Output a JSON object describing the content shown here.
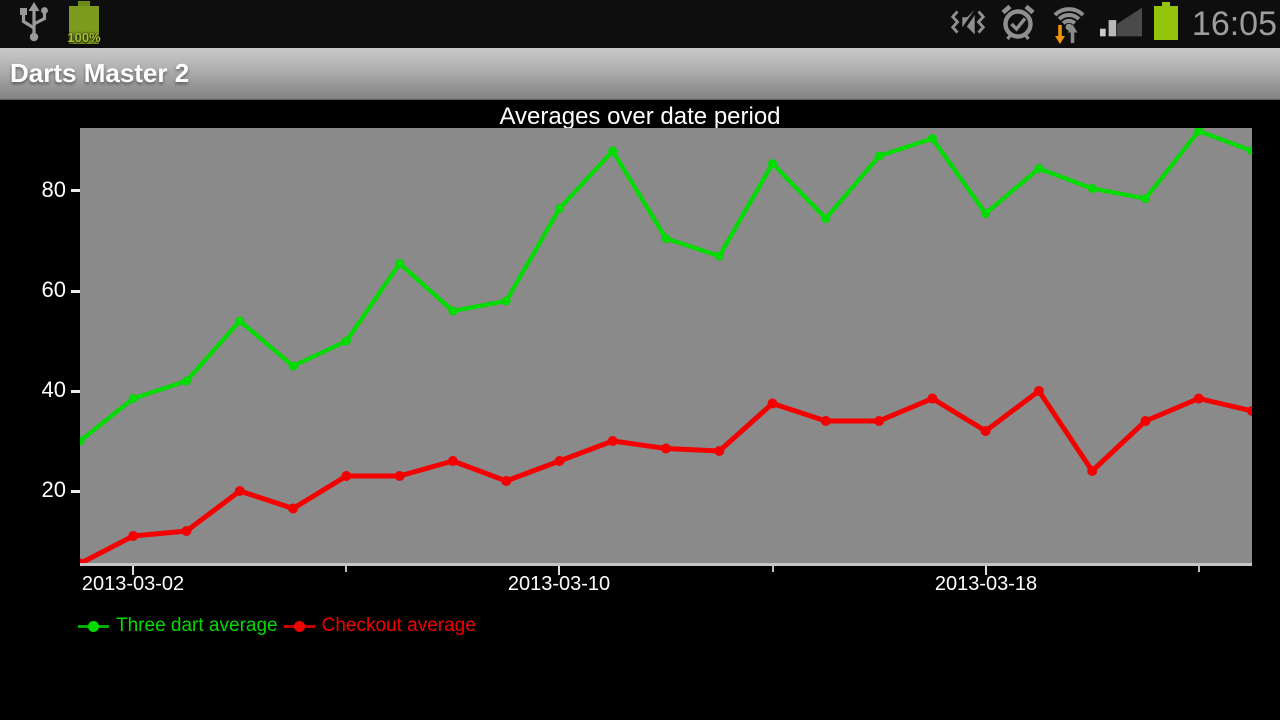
{
  "status_bar": {
    "time": "16:05",
    "battery_left_label": "100%",
    "icons_left": [
      "usb-icon",
      "battery-100-icon"
    ],
    "icons_right": [
      "vibrate-mute-icon",
      "alarm-icon",
      "wifi-traffic-icon",
      "signal-strength-icon",
      "battery-full-icon"
    ],
    "colors": {
      "battery_left": "#7d9b1e",
      "battery_left_nub": "#6d8a16",
      "battery_left_text": "#a6c32f",
      "battery_right": "#94c30e",
      "icon_gray": "#8f8f8f",
      "time_text": "#9d9d9d",
      "wifi_down_arrow": "#f09409",
      "wifi_up_arrow": "#8a8a8a"
    }
  },
  "title_bar": {
    "title": "Darts Master 2"
  },
  "chart_data": {
    "type": "line",
    "title": "Averages over date period",
    "xlabel": "",
    "ylabel": "",
    "x": [
      "2013-03-01",
      "2013-03-02",
      "2013-03-03",
      "2013-03-04",
      "2013-03-05",
      "2013-03-06",
      "2013-03-07",
      "2013-03-08",
      "2013-03-09",
      "2013-03-10",
      "2013-03-11",
      "2013-03-12",
      "2013-03-13",
      "2013-03-14",
      "2013-03-15",
      "2013-03-16",
      "2013-03-17",
      "2013-03-18",
      "2013-03-19",
      "2013-03-20",
      "2013-03-21",
      "2013-03-22",
      "2013-03-23"
    ],
    "series": [
      {
        "name": "Three dart average",
        "color": "#00dc00",
        "legend_line_color": "#00a800",
        "values": [
          30,
          38.5,
          42,
          54,
          45,
          50,
          65.5,
          56,
          58,
          76.5,
          88,
          70.5,
          67,
          85.5,
          74.5,
          87,
          90.5,
          75.5,
          84.5,
          80.5,
          78.5,
          92,
          88
        ]
      },
      {
        "name": "Checkout average",
        "color": "#f40000",
        "legend_line_color": "#c40000",
        "values": [
          5.5,
          11,
          12,
          20,
          16.5,
          23,
          23,
          26,
          22,
          26,
          30,
          28.5,
          28,
          37.5,
          34,
          34,
          38.5,
          32,
          40,
          24,
          34,
          38.5,
          36
        ]
      }
    ],
    "ylim": [
      5,
      92.6
    ],
    "y_ticks": [
      20,
      40,
      60,
      80
    ],
    "x_major_ticks": [
      {
        "index": 1,
        "label": "2013-03-02"
      },
      {
        "index": 9,
        "label": "2013-03-10"
      },
      {
        "index": 17,
        "label": "2013-03-18"
      }
    ],
    "x_minor_tick_indices": [
      5,
      13,
      21
    ],
    "grid": false,
    "legend_position": "bottom-left",
    "plot_bg": "#8a8a8a",
    "axis_color": "#c6c6c6",
    "tick_color": "#ededed",
    "label_color": "#ffffff"
  }
}
